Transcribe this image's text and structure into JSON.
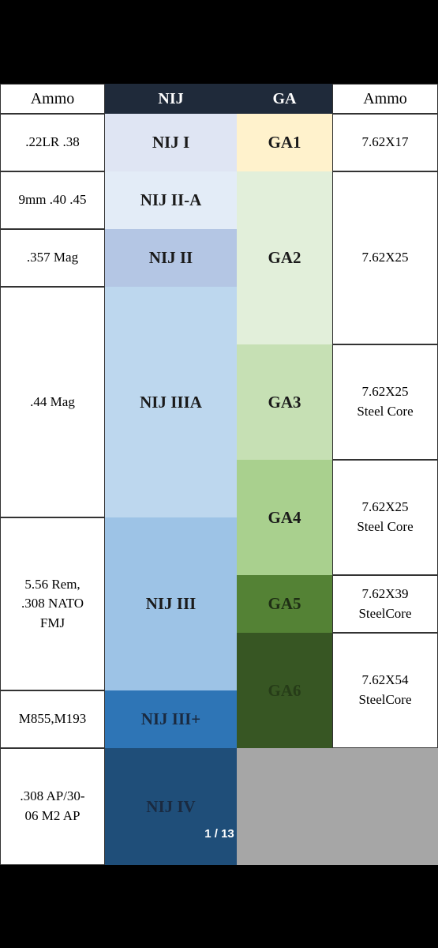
{
  "table": {
    "header": [
      "Ammo",
      "NIJ",
      "GA",
      "Ammo"
    ],
    "pistol_ammo": [
      [
        ".22LR .38"
      ],
      [
        "9mm .40 .45"
      ],
      [
        ".357 Mag"
      ],
      [
        ".44 Mag"
      ],
      [
        "5.56 Rem,",
        ".308 NATO",
        "FMJ"
      ],
      [
        "M855,M193"
      ],
      [
        ".308 AP/30-",
        "06 M2 AP"
      ]
    ],
    "nij": [
      [
        "NIJ I"
      ],
      [
        "NIJ II-A"
      ],
      [
        "NIJ II"
      ],
      [
        "NIJ IIIA"
      ],
      [
        "NIJ III"
      ],
      [
        "NIJ III+"
      ],
      [
        "NIJ IV"
      ]
    ],
    "ga": [
      [
        "GA1"
      ],
      [
        "GA2"
      ],
      [
        "GA3"
      ],
      [
        "GA4"
      ],
      [
        "GA5"
      ],
      [
        "GA6"
      ]
    ],
    "rifle_ammo": [
      [
        "7.62X17"
      ],
      [
        "7.62X25"
      ],
      [
        "7.62X25",
        "Steel Core"
      ],
      [
        "7.62X25",
        "Steel Core"
      ],
      [
        "7.62X39",
        "SteelCore"
      ],
      [
        "7.62X54",
        "SteelCore"
      ]
    ]
  },
  "pager": "1 / 13"
}
